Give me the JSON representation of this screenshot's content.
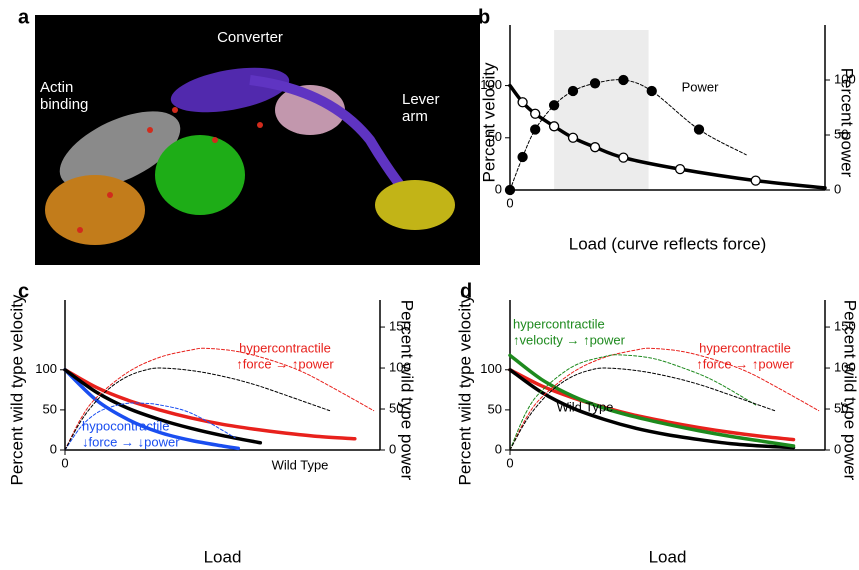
{
  "panel_a": {
    "label": "a",
    "annotations": [
      {
        "lines": [
          "Converter"
        ]
      },
      {
        "lines": [
          "Actin",
          "binding"
        ]
      },
      {
        "lines": [
          "Lever",
          "arm"
        ]
      }
    ]
  },
  "chart_data": [
    {
      "label": "b",
      "type": "line",
      "xlabel": "Load (curve reflects force)",
      "ylabel": "Percent velocity",
      "y2label": "Percent power",
      "xlim": [
        0,
        100
      ],
      "xticks": [
        0
      ],
      "ylim": [
        0,
        158
      ],
      "yticks": [
        0,
        50,
        100
      ],
      "y2lim": [
        0,
        150
      ],
      "y2ticks": [
        0,
        50,
        100
      ],
      "highlight_range": [
        14,
        44
      ],
      "series": [
        {
          "color": "#000000",
          "width": 3.5,
          "x": [
            0,
            4,
            8,
            14,
            20,
            27,
            36,
            54,
            78,
            100
          ],
          "values": [
            100,
            84,
            73,
            61,
            50,
            41,
            31,
            20,
            9,
            2
          ]
        },
        {
          "color": "#000000",
          "marker": "open",
          "line": false,
          "x": [
            4,
            8,
            14,
            20,
            27,
            36,
            54,
            78
          ],
          "values": [
            84,
            73,
            61,
            50,
            41,
            31,
            20,
            9
          ]
        },
        {
          "color": "#000000",
          "width": 1,
          "dash": true,
          "axis": "y2",
          "x": [
            0,
            4,
            8,
            14,
            20,
            27,
            36,
            45,
            60,
            75
          ],
          "values": [
            0,
            30,
            55,
            77,
            90,
            97,
            100,
            90,
            55,
            32
          ]
        },
        {
          "color": "#000000",
          "marker": "filled",
          "line": false,
          "axis": "y2",
          "x": [
            0,
            4,
            8,
            14,
            20,
            27,
            36,
            45,
            60
          ],
          "values": [
            0,
            30,
            55,
            77,
            90,
            97,
            100,
            90,
            55
          ]
        }
      ],
      "annotations": [
        {
          "lines": [
            "Power"
          ],
          "color": "#000000"
        }
      ]
    },
    {
      "label": "c",
      "type": "line",
      "xlabel": "Load",
      "ylabel": "Percent wild type velocity",
      "y2label": "Percent wild type power",
      "xlim": [
        0,
        100
      ],
      "xticks": [
        0
      ],
      "ylim": [
        0,
        187
      ],
      "yticks": [
        0,
        50,
        100
      ],
      "y2lim": [
        0,
        183
      ],
      "y2ticks": [
        0,
        50,
        100,
        150
      ],
      "series": [
        {
          "color": "#e8211c",
          "width": 3.5,
          "x": [
            0,
            10,
            20,
            30,
            40,
            50,
            60,
            70,
            80,
            92
          ],
          "values": [
            100,
            78,
            62,
            50,
            40,
            32,
            26,
            21,
            17,
            14
          ]
        },
        {
          "color": "#1a4ef0",
          "width": 3.5,
          "x": [
            0,
            10,
            20,
            30,
            40,
            50,
            55
          ],
          "values": [
            100,
            62,
            38,
            22,
            12,
            5,
            2
          ]
        },
        {
          "color": "#000000",
          "width": 3.5,
          "x": [
            0,
            10,
            20,
            30,
            40,
            50,
            62
          ],
          "values": [
            100,
            72,
            52,
            38,
            27,
            18,
            9
          ]
        },
        {
          "color": "#e8211c",
          "width": 1,
          "dash": true,
          "axis": "y2",
          "x": [
            0,
            5,
            10,
            20,
            30,
            40,
            45,
            55,
            65,
            75,
            85,
            98
          ],
          "values": [
            0,
            38,
            64,
            95,
            113,
            122,
            124,
            120,
            110,
            96,
            76,
            48
          ]
        },
        {
          "color": "#1a4ef0",
          "width": 1,
          "dash": true,
          "axis": "y2",
          "x": [
            0,
            5,
            10,
            15,
            20,
            25,
            30,
            40,
            54
          ],
          "values": [
            0,
            28,
            45,
            53,
            57,
            57,
            55,
            45,
            15
          ]
        },
        {
          "color": "#000000",
          "width": 1,
          "dash": true,
          "axis": "y2",
          "x": [
            0,
            5,
            10,
            15,
            20,
            25,
            30,
            40,
            50,
            60,
            70,
            84
          ],
          "values": [
            0,
            35,
            60,
            78,
            90,
            97,
            100,
            97,
            90,
            80,
            67,
            48
          ]
        }
      ],
      "annotations": [
        {
          "lines": [
            "hypercontractile",
            "↑force → ↑power"
          ],
          "color": "#e8211c"
        },
        {
          "lines": [
            "hypocontractile",
            "↓force → ↓power"
          ],
          "color": "#1a4ef0"
        },
        {
          "lines": [
            "Wild Type"
          ],
          "color": "#000000"
        }
      ]
    },
    {
      "label": "d",
      "type": "line",
      "xlabel": "Load",
      "ylabel": "Percent wild type velocity",
      "y2label": "Percent wild type power",
      "xlim": [
        0,
        100
      ],
      "xticks": [
        0
      ],
      "ylim": [
        0,
        187
      ],
      "yticks": [
        0,
        50,
        100
      ],
      "y2lim": [
        0,
        183
      ],
      "y2ticks": [
        0,
        50,
        100,
        150
      ],
      "series": [
        {
          "color": "#e8211c",
          "width": 3.5,
          "x": [
            0,
            10,
            20,
            30,
            40,
            50,
            60,
            70,
            80,
            90
          ],
          "values": [
            100,
            80,
            65,
            53,
            43,
            35,
            28,
            22,
            17,
            13
          ]
        },
        {
          "color": "#000000",
          "width": 3.5,
          "x": [
            0,
            10,
            20,
            30,
            40,
            50,
            60,
            70,
            80,
            90
          ],
          "values": [
            100,
            72,
            52,
            38,
            27,
            19,
            13,
            8,
            5,
            3
          ]
        },
        {
          "color": "#1e8a1e",
          "width": 3.5,
          "x": [
            0,
            10,
            20,
            30,
            40,
            50,
            60,
            70,
            80,
            90
          ],
          "values": [
            118,
            88,
            67,
            52,
            41,
            32,
            24,
            17,
            11,
            5
          ]
        },
        {
          "color": "#e8211c",
          "width": 1,
          "dash": true,
          "axis": "y2",
          "x": [
            0,
            5,
            10,
            20,
            30,
            40,
            45,
            55,
            65,
            75,
            85,
            98
          ],
          "values": [
            0,
            38,
            64,
            95,
            113,
            122,
            124,
            120,
            110,
            96,
            76,
            48
          ]
        },
        {
          "color": "#1e8a1e",
          "width": 1,
          "dash": true,
          "axis": "y2",
          "x": [
            0,
            5,
            10,
            20,
            30,
            35,
            45,
            55,
            65,
            78
          ],
          "values": [
            0,
            45,
            72,
            102,
            114,
            116,
            112,
            100,
            84,
            55
          ]
        },
        {
          "color": "#000000",
          "width": 1,
          "dash": true,
          "axis": "y2",
          "x": [
            0,
            5,
            10,
            15,
            20,
            25,
            30,
            40,
            50,
            60,
            70,
            84
          ],
          "values": [
            0,
            35,
            60,
            78,
            90,
            97,
            100,
            97,
            90,
            80,
            67,
            48
          ]
        }
      ],
      "annotations": [
        {
          "lines": [
            "hypercontractile",
            "↑velocity → ↑power"
          ],
          "color": "#1e8a1e"
        },
        {
          "lines": [
            "hypercontractile",
            "↑force → ↑power"
          ],
          "color": "#e8211c"
        },
        {
          "lines": [
            "Wild Type"
          ],
          "color": "#000000"
        }
      ]
    }
  ]
}
